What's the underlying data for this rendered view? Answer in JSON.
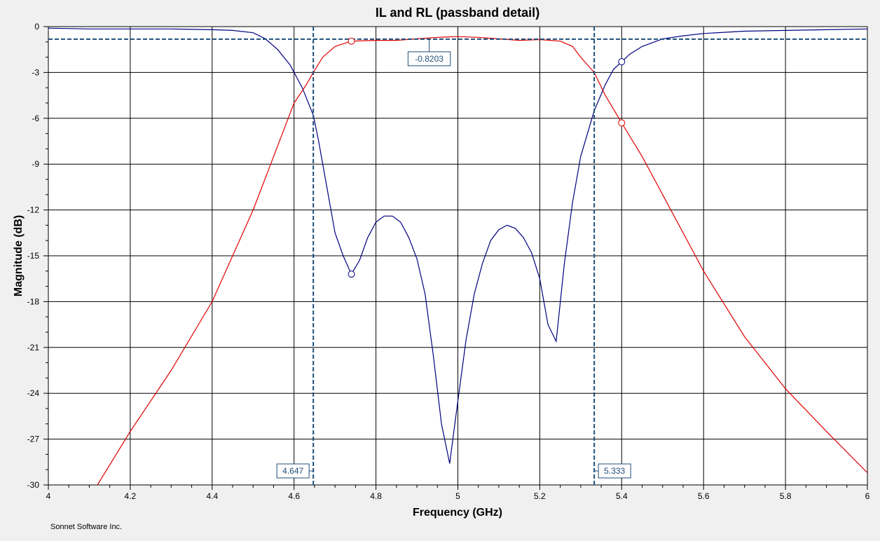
{
  "chart_data": {
    "type": "line",
    "title": "IL and RL (passband detail)",
    "xlabel": "Frequency (GHz)",
    "ylabel": "Magnitude (dB)",
    "xlim": [
      4,
      6
    ],
    "ylim": [
      -30,
      0
    ],
    "x_ticks": [
      "4",
      "4.2",
      "4.4",
      "4.6",
      "4.8",
      "5",
      "5.2",
      "5.4",
      "5.6",
      "5.8",
      "6"
    ],
    "y_ticks": [
      "0",
      "-3",
      "-6",
      "-9",
      "-12",
      "-15",
      "-18",
      "-21",
      "-24",
      "-27",
      "-30"
    ],
    "grid": true,
    "series": [
      {
        "color": "#000080",
        "x": [
          4.0,
          4.1,
          4.2,
          4.3,
          4.4,
          4.45,
          4.5,
          4.53,
          4.56,
          4.59,
          4.62,
          4.647,
          4.66,
          4.68,
          4.7,
          4.72,
          4.74,
          4.76,
          4.78,
          4.8,
          4.82,
          4.84,
          4.86,
          4.88,
          4.9,
          4.92,
          4.94,
          4.96,
          4.98,
          5.0,
          5.02,
          5.04,
          5.06,
          5.08,
          5.1,
          5.12,
          5.14,
          5.16,
          5.18,
          5.2,
          5.22,
          5.24,
          5.26,
          5.28,
          5.3,
          5.333,
          5.36,
          5.38,
          5.4,
          5.42,
          5.45,
          5.48,
          5.5,
          5.55,
          5.6,
          5.7,
          5.8,
          5.9,
          6.0
        ],
        "values": [
          -0.1,
          -0.15,
          -0.15,
          -0.15,
          -0.2,
          -0.25,
          -0.4,
          -0.8,
          -1.5,
          -2.5,
          -4.0,
          -5.8,
          -7.5,
          -10.5,
          -13.5,
          -15.0,
          -16.2,
          -15.3,
          -13.8,
          -12.8,
          -12.4,
          -12.4,
          -12.8,
          -13.8,
          -15.2,
          -17.5,
          -21.5,
          -26.0,
          -28.6,
          -24.5,
          -20.5,
          -17.5,
          -15.5,
          -14.0,
          -13.3,
          -13.0,
          -13.2,
          -13.8,
          -14.8,
          -16.5,
          -19.5,
          -20.6,
          -15.5,
          -11.5,
          -8.5,
          -5.5,
          -3.8,
          -2.8,
          -2.3,
          -1.8,
          -1.3,
          -1.0,
          -0.8,
          -0.6,
          -0.45,
          -0.3,
          -0.25,
          -0.2,
          -0.15
        ]
      },
      {
        "color": "#e00000",
        "x": [
          4.12,
          4.2,
          4.3,
          4.4,
          4.45,
          4.5,
          4.55,
          4.6,
          4.63,
          4.647,
          4.67,
          4.7,
          4.74,
          4.8,
          4.85,
          4.9,
          4.95,
          5.0,
          5.05,
          5.1,
          5.15,
          5.2,
          5.25,
          5.28,
          5.3,
          5.333,
          5.36,
          5.4,
          5.45,
          5.5,
          5.6,
          5.7,
          5.8,
          5.9,
          6.0
        ],
        "values": [
          -30.0,
          -26.5,
          -22.5,
          -18.0,
          -15.0,
          -12.0,
          -8.5,
          -5.0,
          -3.8,
          -3.0,
          -2.0,
          -1.3,
          -0.95,
          -0.9,
          -0.9,
          -0.8,
          -0.7,
          -0.65,
          -0.7,
          -0.8,
          -0.9,
          -0.85,
          -0.95,
          -1.3,
          -2.0,
          -3.0,
          -4.5,
          -6.3,
          -8.5,
          -11.0,
          -16.0,
          -20.3,
          -23.7,
          -26.5,
          -29.2
        ]
      }
    ],
    "points": [
      {
        "x": 4.74,
        "y": -16.2,
        "color": "#000080"
      },
      {
        "x": 4.74,
        "y": -0.95,
        "color": "#e00000"
      },
      {
        "x": 5.4,
        "y": -2.3,
        "color": "#000080"
      },
      {
        "x": 5.4,
        "y": -6.3,
        "color": "#e00000"
      }
    ],
    "reference_lines": {
      "color": "#1f4e79",
      "horizontal": [
        {
          "y": -0.8203,
          "label": "-0.8203",
          "label_x": 4.93
        }
      ],
      "vertical": [
        {
          "x": 4.647,
          "label": "4.647"
        },
        {
          "x": 5.333,
          "label": "5.333"
        }
      ]
    }
  },
  "footer": "Sonnet Software Inc."
}
